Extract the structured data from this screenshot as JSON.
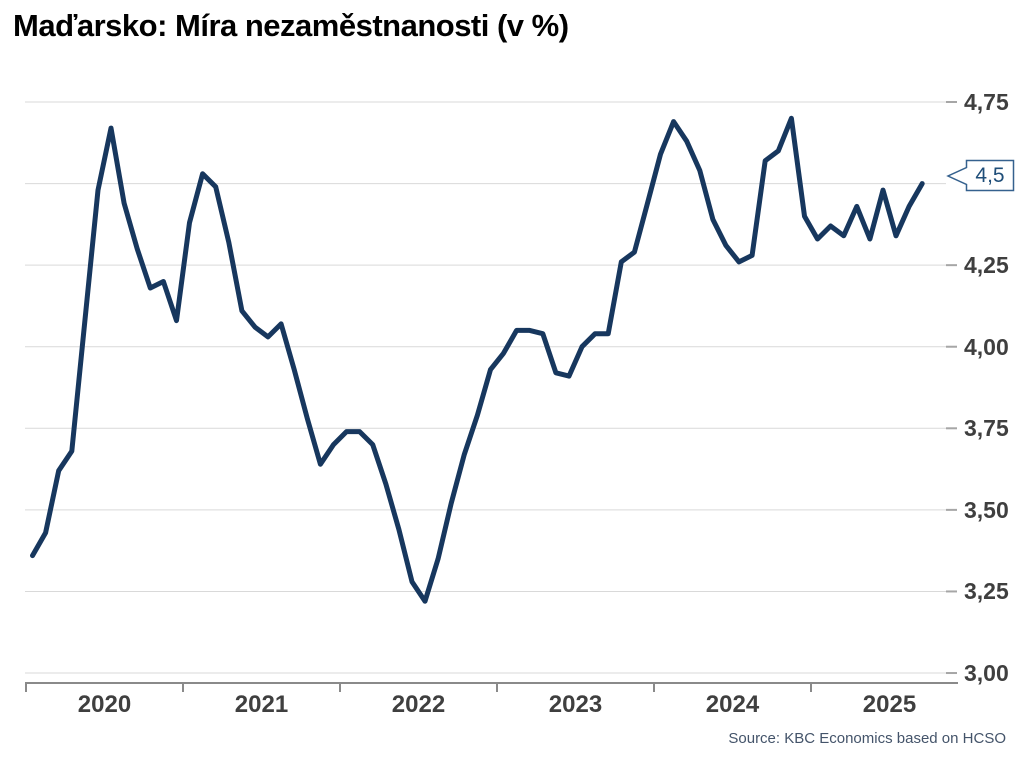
{
  "title": "Maďarsko: Míra nezaměstnanosti (v %)",
  "source": "Source: KBC Economics based on HCSO",
  "callout": {
    "label": "4,5"
  },
  "chart_data": {
    "type": "line",
    "title": "Maďarsko: Míra nezaměstnanosti (v %)",
    "unit": "%",
    "frequency": "monthly",
    "x_start": "2020-01",
    "x_end": "2025-09",
    "series": [
      {
        "name": "Míra nezaměstnanosti",
        "values": [
          3.36,
          3.43,
          3.62,
          3.68,
          4.08,
          4.48,
          4.67,
          4.44,
          4.3,
          4.18,
          4.2,
          4.08,
          4.38,
          4.53,
          4.49,
          4.32,
          4.11,
          4.06,
          4.03,
          4.07,
          3.93,
          3.78,
          3.64,
          3.7,
          3.74,
          3.74,
          3.7,
          3.58,
          3.44,
          3.28,
          3.22,
          3.35,
          3.52,
          3.67,
          3.79,
          3.93,
          3.98,
          4.05,
          4.05,
          4.04,
          3.92,
          3.91,
          4.0,
          4.04,
          4.04,
          4.26,
          4.29,
          4.44,
          4.59,
          4.69,
          4.63,
          4.54,
          4.39,
          4.31,
          4.26,
          4.28,
          4.57,
          4.6,
          4.7,
          4.4,
          4.33,
          4.37,
          4.34,
          4.43,
          4.33,
          4.48,
          4.34,
          4.43,
          4.5
        ]
      }
    ],
    "last_value": 4.5,
    "last_value_label": "4,5",
    "x_tick_years": [
      "2020",
      "2021",
      "2022",
      "2023",
      "2024",
      "2025"
    ],
    "y_axis": {
      "min": 3.0,
      "max": 4.75,
      "step": 0.25,
      "gridline_values": [
        4.75,
        4.5,
        4.25,
        4.0,
        3.75,
        3.5,
        3.25,
        3.0
      ],
      "label_values": [
        4.75,
        4.25,
        4.0,
        3.75,
        3.5,
        3.25,
        3.0
      ],
      "labels": [
        "4,75",
        "4,25",
        "4,00",
        "3,75",
        "3,50",
        "3,25",
        "3,00"
      ]
    },
    "grid": "horizontal-only",
    "legend": "none",
    "colors": {
      "line": "#17375e",
      "gridline": "#d9d9d9",
      "axis": "#8a8a8a",
      "tick": "#a6a6a6",
      "tick_label": "#3f3f3f",
      "callout_border": "#35618e",
      "callout_text": "#1f4e79",
      "source_text": "#44546a",
      "title_text": "#000000"
    }
  }
}
